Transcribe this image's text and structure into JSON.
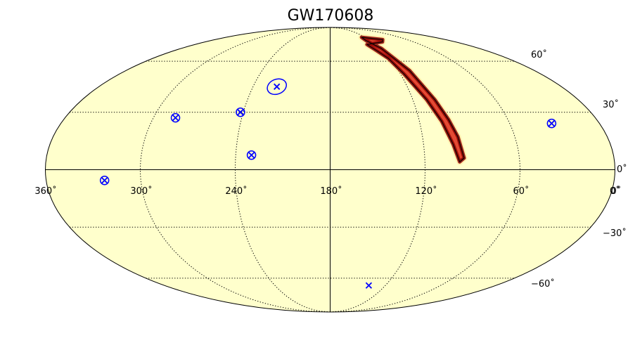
{
  "title": "GW170608",
  "projection": "mollweide",
  "grid": true,
  "longitude_labels": [
    "360˚",
    "300˚",
    "240˚",
    "180˚",
    "120˚",
    "60˚",
    "0˚"
  ],
  "latitude_labels": [
    "60˚",
    "30˚",
    "0˚",
    "0˚",
    "−30˚",
    "−60˚"
  ],
  "colors": {
    "background": "#ffffcc",
    "skymap_outer": "#fee391",
    "skymap_mid": "#e34a33",
    "skymap_core": "#8b0000",
    "markers": "#0000ff",
    "outline": "#000000"
  },
  "marker_symbols": [
    "cross",
    "ellipse"
  ],
  "chart_data": {
    "type": "sky map",
    "title": "GW170608",
    "x_range_deg": [
      360,
      0
    ],
    "y_range_deg": [
      -90,
      90
    ],
    "longitude_ticks": [
      360,
      300,
      240,
      180,
      120,
      60,
      0
    ],
    "latitude_ticks": [
      60,
      30,
      0,
      -30,
      -60
    ],
    "probability_region": {
      "description": "credible region",
      "path": [
        [
          126,
          75
        ],
        [
          118,
          69
        ],
        [
          110,
          54
        ],
        [
          104,
          37
        ],
        [
          100,
          26
        ],
        [
          97,
          17
        ],
        [
          95,
          6
        ],
        [
          98,
          4
        ],
        [
          101,
          13
        ],
        [
          105,
          25
        ],
        [
          110,
          37
        ],
        [
          117,
          52
        ],
        [
          121,
          62
        ],
        [
          127,
          68
        ],
        [
          131,
          72
        ],
        [
          105,
          74
        ],
        [
          98,
          76
        ],
        [
          126,
          78
        ]
      ]
    },
    "markers": [
      {
        "lon": 221.5,
        "lat": 44.3,
        "shape": "ellipse-cross"
      },
      {
        "lon": 285,
        "lat": 27,
        "shape": "ellipse-cross"
      },
      {
        "lon": 242,
        "lat": 30,
        "shape": "ellipse-cross"
      },
      {
        "lon": 230,
        "lat": 7.5,
        "shape": "ellipse-cross"
      },
      {
        "lon": 32,
        "lat": 24,
        "shape": "ellipse-cross"
      },
      {
        "lon": 323,
        "lat": -5.5,
        "shape": "ellipse-cross"
      },
      {
        "lon": 138,
        "lat": -65,
        "shape": "cross"
      }
    ]
  }
}
